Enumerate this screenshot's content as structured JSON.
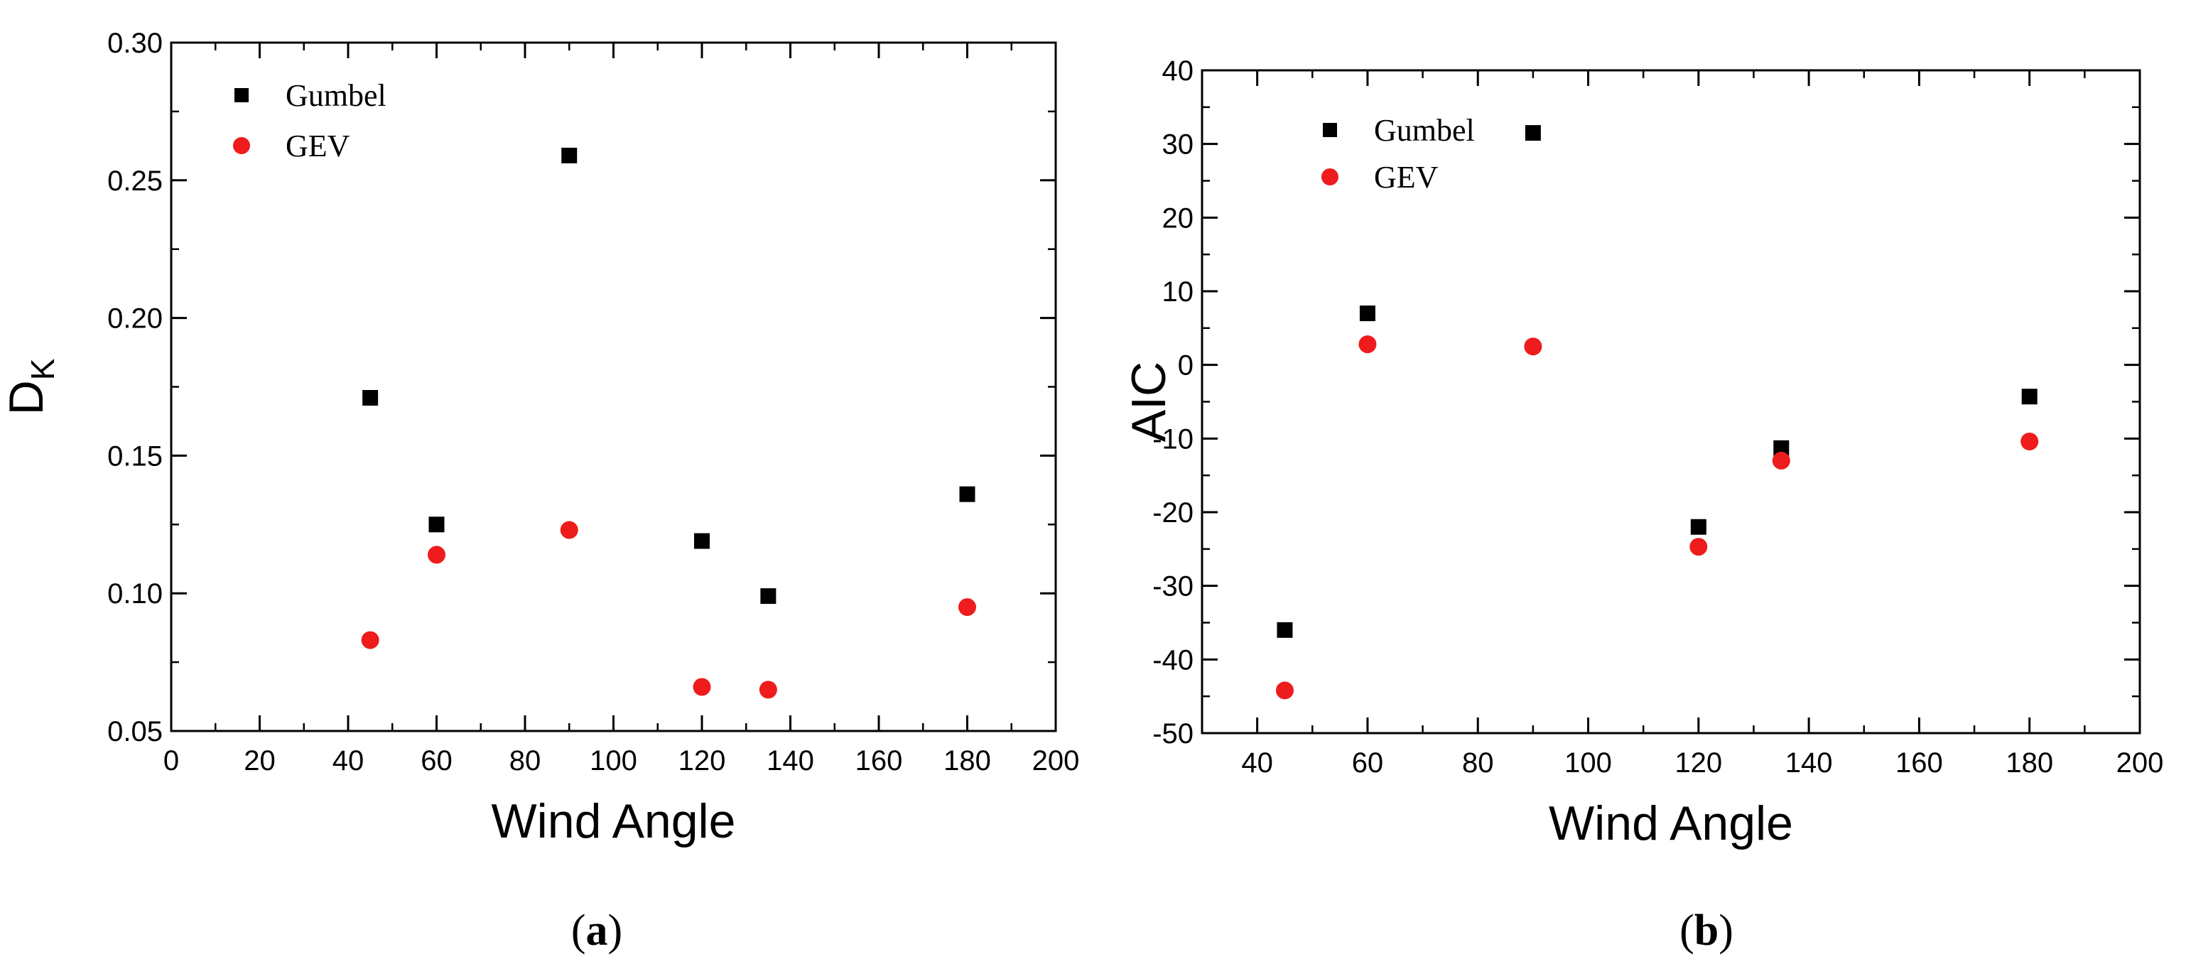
{
  "chart_data": [
    {
      "type": "scatter",
      "caption": {
        "open": "(",
        "letter": "a",
        "close": ")"
      },
      "xlabel": "Wind Angle",
      "ylabel": {
        "main": "D",
        "subscript": "K"
      },
      "xlim": [
        0,
        200
      ],
      "ylim": [
        0.05,
        0.3
      ],
      "xticks": [
        "0",
        "20",
        "40",
        "60",
        "80",
        "100",
        "120",
        "140",
        "160",
        "180",
        "200"
      ],
      "yticks": [
        "0.05",
        "0.10",
        "0.15",
        "0.20",
        "0.25",
        "0.30"
      ],
      "xtick_values": [
        0,
        20,
        40,
        60,
        80,
        100,
        120,
        140,
        160,
        180,
        200
      ],
      "ytick_values": [
        0.05,
        0.1,
        0.15,
        0.2,
        0.25,
        0.3
      ],
      "xminor_step": 10,
      "yminor_step": 0.025,
      "grid": false,
      "legend_position": "top-left",
      "series": [
        {
          "name": "Gumbel",
          "marker": "square",
          "color": "#000000",
          "x": [
            45,
            60,
            90,
            120,
            135,
            180
          ],
          "y": [
            0.171,
            0.125,
            0.259,
            0.119,
            0.099,
            0.136
          ]
        },
        {
          "name": "GEV",
          "marker": "circle",
          "color": "#ee1c1c",
          "x": [
            45,
            60,
            90,
            120,
            135,
            180
          ],
          "y": [
            0.083,
            0.114,
            0.123,
            0.066,
            0.065,
            0.095
          ]
        }
      ]
    },
    {
      "type": "scatter",
      "caption": {
        "open": "(",
        "letter": "b",
        "close": ")"
      },
      "xlabel": "Wind Angle",
      "ylabel": {
        "main": "AIC",
        "subscript": ""
      },
      "xlim": [
        30,
        200
      ],
      "ylim": [
        -50,
        40
      ],
      "xticks": [
        "40",
        "60",
        "80",
        "100",
        "120",
        "140",
        "160",
        "180",
        "200"
      ],
      "yticks": [
        "-50",
        "-40",
        "-30",
        "-20",
        "-10",
        "0",
        "10",
        "20",
        "30",
        "40"
      ],
      "xtick_values": [
        40,
        60,
        80,
        100,
        120,
        140,
        160,
        180,
        200
      ],
      "ytick_values": [
        -50,
        -40,
        -30,
        -20,
        -10,
        0,
        10,
        20,
        30,
        40
      ],
      "xminor_step": 10,
      "yminor_step": 5,
      "grid": false,
      "legend_position": "top-left",
      "series": [
        {
          "name": "Gumbel",
          "marker": "square",
          "color": "#000000",
          "x": [
            45,
            60,
            90,
            120,
            135,
            180
          ],
          "y": [
            -36,
            7,
            31.5,
            -22,
            -11.3,
            -4.3
          ]
        },
        {
          "name": "GEV",
          "marker": "circle",
          "color": "#ee1c1c",
          "x": [
            45,
            60,
            90,
            120,
            135,
            180
          ],
          "y": [
            -44.2,
            2.8,
            2.5,
            -24.7,
            -13,
            -10.4
          ]
        }
      ]
    }
  ]
}
